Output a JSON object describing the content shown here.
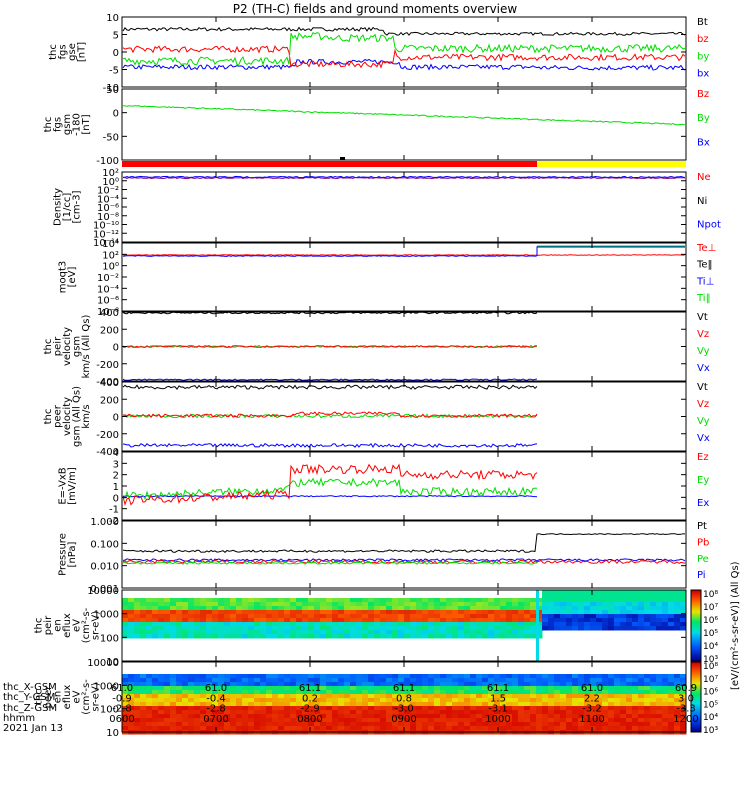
{
  "title": "P2 (TH-C) fields and ground moments overview",
  "date_label": "2021 Jan 13",
  "colors": {
    "black": "#000000",
    "red": "#ff0000",
    "green": "#00dd00",
    "blue": "#0000ff",
    "yellow": "#ffff00",
    "purple": "#800080"
  },
  "chart_data": [
    {
      "id": "fgs",
      "type": "line",
      "ylabel": [
        "thc",
        "fgs",
        "gse",
        "[nT]"
      ],
      "ylim": [
        -10,
        10
      ],
      "yticks": [
        "10",
        "5",
        "0",
        "-5",
        "-10"
      ],
      "legend": [
        {
          "name": "Bt",
          "color": "black"
        },
        {
          "name": "bz",
          "color": "red"
        },
        {
          "name": "by",
          "color": "green"
        },
        {
          "name": "bx",
          "color": "blue"
        }
      ]
    },
    {
      "id": "fgs_gsm",
      "type": "line",
      "ylabel": [
        "thc",
        "fgs",
        "gsm",
        "-180",
        "[nT]"
      ],
      "ylim": [
        -120,
        60
      ],
      "yticks": [
        "50",
        "0",
        "-50",
        "-100"
      ],
      "legend": [
        {
          "name": "Bz",
          "color": "red"
        },
        {
          "name": "By",
          "color": "green"
        },
        {
          "name": "Bx",
          "color": "blue"
        }
      ]
    },
    {
      "id": "density",
      "type": "line",
      "ylabel": [
        "Density",
        "[1/cc]",
        "[cm-3]"
      ],
      "scale": "log",
      "yticks": [
        "10²",
        "10⁰",
        "10⁻²",
        "10⁻⁴",
        "10⁻⁶",
        "10⁻⁸",
        "10⁻¹⁰",
        "10⁻¹²",
        "10⁻¹⁴"
      ],
      "legend": [
        {
          "name": "Ne",
          "color": "red"
        },
        {
          "name": "Ni",
          "color": "black"
        },
        {
          "name": "Npot",
          "color": "blue"
        }
      ]
    },
    {
      "id": "temp",
      "type": "line",
      "ylabel": [
        "moqt3",
        "[eV]"
      ],
      "scale": "log",
      "yticks": [
        "10⁴",
        "10²",
        "10⁰",
        "10⁻²",
        "10⁻⁴",
        "10⁻⁶",
        "10⁻⁸"
      ],
      "legend": [
        {
          "name": "Te⊥",
          "color": "red"
        },
        {
          "name": "Te‖",
          "color": "black"
        },
        {
          "name": "Ti⊥",
          "color": "blue"
        },
        {
          "name": "Ti‖",
          "color": "green"
        }
      ]
    },
    {
      "id": "peir_v",
      "type": "line",
      "ylabel": [
        "thc",
        "peir",
        "velocity",
        "gsm",
        "km/s (All Qs)"
      ],
      "ylim": [
        -400,
        400
      ],
      "yticks": [
        "400",
        "200",
        "0",
        "-200",
        "-400"
      ],
      "legend": [
        {
          "name": "Vt",
          "color": "black"
        },
        {
          "name": "Vz",
          "color": "red"
        },
        {
          "name": "Vy",
          "color": "green"
        },
        {
          "name": "Vx",
          "color": "blue"
        }
      ]
    },
    {
      "id": "peer_v",
      "type": "line",
      "ylabel": [
        "thc",
        "peer",
        "velocity",
        "gsm (All Qs)",
        "km/s"
      ],
      "ylim": [
        -400,
        400
      ],
      "yticks": [
        "400",
        "200",
        "0",
        "-200",
        "-400"
      ],
      "legend": [
        {
          "name": "Vt",
          "color": "black"
        },
        {
          "name": "Vz",
          "color": "red"
        },
        {
          "name": "Vy",
          "color": "green"
        },
        {
          "name": "Vx",
          "color": "blue"
        }
      ]
    },
    {
      "id": "efield",
      "type": "line",
      "ylabel": [
        "E=-VxB",
        "[mV/m]"
      ],
      "ylim": [
        -2,
        4
      ],
      "yticks": [
        "4",
        "3",
        "2",
        "1",
        "0",
        "-1",
        "-2"
      ],
      "legend": [
        {
          "name": "Ez",
          "color": "red"
        },
        {
          "name": "Ey",
          "color": "green"
        },
        {
          "name": "Ex",
          "color": "blue"
        }
      ]
    },
    {
      "id": "pressure",
      "type": "line",
      "ylabel": [
        "Pressure",
        "[nPa]"
      ],
      "scale": "log",
      "yticks": [
        "1.000",
        "0.100",
        "0.010",
        "0.001"
      ],
      "legend": [
        {
          "name": "Pt",
          "color": "black"
        },
        {
          "name": "Pb",
          "color": "red"
        },
        {
          "name": "Pe",
          "color": "green"
        },
        {
          "name": "Pi",
          "color": "blue"
        }
      ]
    },
    {
      "id": "peir_spec",
      "type": "heatmap",
      "ylabel": [
        "thc",
        "peir",
        "en",
        "eflux",
        "eV",
        "(cm²-s-",
        "sr-eV)"
      ],
      "scale": "log",
      "yticks": [
        "10000",
        "1000",
        "100",
        "10"
      ]
    },
    {
      "id": "peer_spec",
      "type": "heatmap",
      "ylabel": [
        "thc",
        "peer",
        "en",
        "eflux",
        "eV",
        "(cm²-s-",
        "sr-eV)"
      ],
      "scale": "log",
      "yticks": [
        "10000",
        "1000",
        "100",
        "10"
      ]
    }
  ],
  "colorbar_ticks": [
    "10⁸",
    "10⁷",
    "10⁶",
    "10⁵",
    "10⁴",
    "10³"
  ],
  "colorbar_label": "[eV/(cm²-s-sr-eV)] (All Qs)",
  "footer": {
    "row_labels": [
      "thc_X-GSM",
      "thc_Y-GSM",
      "thc_Z-GSM",
      "hhmm"
    ],
    "columns": [
      [
        "61.0",
        "-0.9",
        "-2.8",
        "0600"
      ],
      [
        "61.0",
        "-0.4",
        "-2.8",
        "0700"
      ],
      [
        "61.1",
        "0.2",
        "-2.9",
        "0800"
      ],
      [
        "61.1",
        "0.8",
        "-3.0",
        "0900"
      ],
      [
        "61.1",
        "1.5",
        "-3.1",
        "1000"
      ],
      [
        "61.0",
        "2.2",
        "-3.2",
        "1100"
      ],
      [
        "60.9",
        "3.0",
        "-3.3",
        "1200"
      ]
    ]
  }
}
